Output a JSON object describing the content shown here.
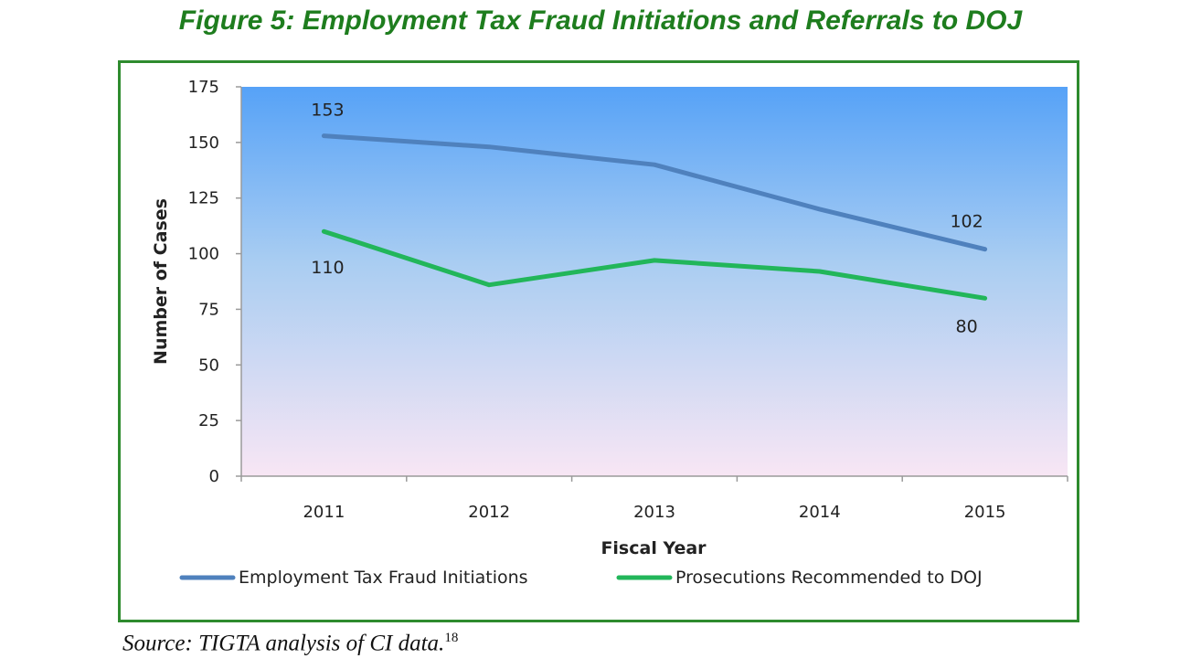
{
  "figure": {
    "title": "Figure 5:  Employment Tax Fraud Initiations and Referrals to DOJ",
    "source_text": "Source:  TIGTA analysis of CI data.",
    "source_footnote": "18"
  },
  "chart_data": {
    "type": "line",
    "title": "",
    "xlabel": "Fiscal Year",
    "ylabel": "Number of Cases",
    "categories": [
      "2011",
      "2012",
      "2013",
      "2014",
      "2015"
    ],
    "ylim": [
      0,
      175
    ],
    "yticks": [
      0,
      25,
      50,
      75,
      100,
      125,
      150,
      175
    ],
    "grid": false,
    "legend": "bottom",
    "background": "gradient-blue-to-pink",
    "series": [
      {
        "name": "Employment Tax Fraud Initiations",
        "color": "#4f81bd",
        "values": [
          153,
          148,
          140,
          120,
          102
        ],
        "labels": {
          "0": "153",
          "4": "102"
        }
      },
      {
        "name": "Prosecutions Recommended to DOJ",
        "color": "#22b65a",
        "values": [
          110,
          86,
          97,
          92,
          80
        ],
        "labels": {
          "0": "110",
          "4": "80"
        }
      }
    ]
  }
}
